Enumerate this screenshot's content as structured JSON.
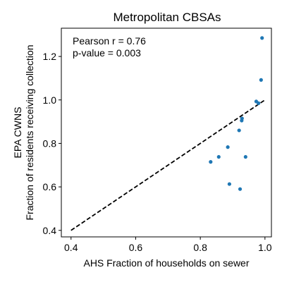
{
  "chart_data": {
    "type": "scatter",
    "title": "Metropolitan CBSAs",
    "xlabel": "AHS Fraction of households on sewer",
    "ylabel_line1": "EPA CWNS",
    "ylabel_line2": "Fraction of residents receiving collection",
    "xlim": [
      0.37,
      1.02
    ],
    "ylim": [
      0.37,
      1.33
    ],
    "x_ticks": [
      0.4,
      0.6,
      0.8,
      1.0
    ],
    "x_tick_labels": [
      "0.4",
      "0.6",
      "0.8",
      "1.0"
    ],
    "y_ticks": [
      0.4,
      0.6,
      0.8,
      1.0,
      1.2
    ],
    "y_tick_labels": [
      "0.4",
      "0.6",
      "0.8",
      "1.0",
      "1.2"
    ],
    "grid": false,
    "annotations": {
      "pearson": "Pearson r = 0.76",
      "pvalue": "p-value = 0.003"
    },
    "reference_line": {
      "style": "dashed",
      "color": "#000000",
      "points": [
        [
          0.4,
          0.4
        ],
        [
          1.0,
          1.0
        ]
      ]
    },
    "series": [
      {
        "color": "#1f77b4",
        "points": [
          [
            0.832,
            0.715
          ],
          [
            0.857,
            0.738
          ],
          [
            0.885,
            0.783
          ],
          [
            0.89,
            0.613
          ],
          [
            0.92,
            0.86
          ],
          [
            0.923,
            0.59
          ],
          [
            0.928,
            0.905
          ],
          [
            0.929,
            0.915
          ],
          [
            0.94,
            0.738
          ],
          [
            0.973,
            0.993
          ],
          [
            0.98,
            0.985
          ],
          [
            0.988,
            1.092
          ],
          [
            0.991,
            1.285
          ]
        ]
      }
    ]
  }
}
